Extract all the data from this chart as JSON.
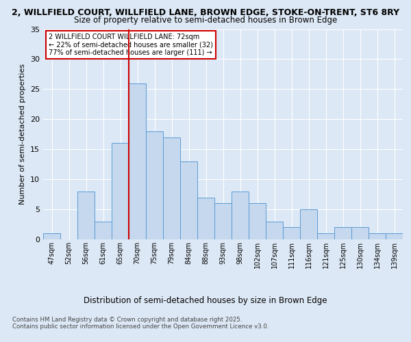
{
  "title_line1": "2, WILLFIELD COURT, WILLFIELD LANE, BROWN EDGE, STOKE-ON-TRENT, ST6 8RY",
  "title_line2": "Size of property relative to semi-detached houses in Brown Edge",
  "xlabel": "Distribution of semi-detached houses by size in Brown Edge",
  "ylabel": "Number of semi-detached properties",
  "categories": [
    "47sqm",
    "52sqm",
    "56sqm",
    "61sqm",
    "65sqm",
    "70sqm",
    "75sqm",
    "79sqm",
    "84sqm",
    "88sqm",
    "93sqm",
    "98sqm",
    "102sqm",
    "107sqm",
    "111sqm",
    "116sqm",
    "121sqm",
    "125sqm",
    "130sqm",
    "134sqm",
    "139sqm"
  ],
  "values": [
    1,
    0,
    8,
    3,
    16,
    26,
    18,
    17,
    13,
    7,
    6,
    8,
    6,
    3,
    2,
    5,
    1,
    2,
    2,
    1,
    1
  ],
  "bar_color": "#c5d8ed",
  "bar_edge_color": "#5b9bd5",
  "vline_index": 5,
  "vline_color": "#cc0000",
  "ylim": [
    0,
    35
  ],
  "yticks": [
    0,
    5,
    10,
    15,
    20,
    25,
    30,
    35
  ],
  "annotation_text": "2 WILLFIELD COURT WILLFIELD LANE: 72sqm\n← 22% of semi-detached houses are smaller (32)\n77% of semi-detached houses are larger (111) →",
  "annotation_box_color": "#ffffff",
  "annotation_border_color": "#cc0000",
  "bg_color": "#dce8f5",
  "plot_bg_color": "#dce8f5",
  "footer_line1": "Contains HM Land Registry data © Crown copyright and database right 2025.",
  "footer_line2": "Contains public sector information licensed under the Open Government Licence v3.0."
}
